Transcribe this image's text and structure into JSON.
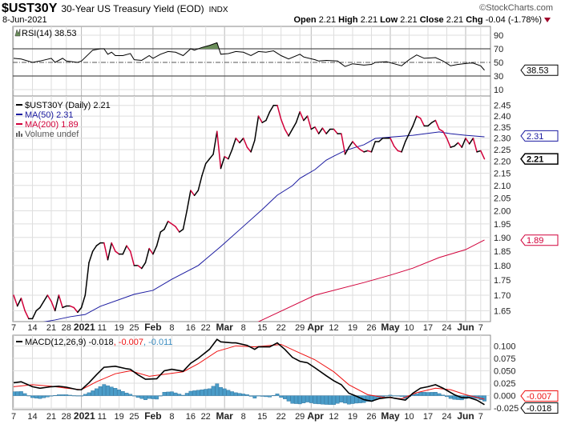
{
  "header": {
    "symbol": "$UST30Y",
    "name": "30-Year US Treasury Yield (EOD)",
    "exchange": "INDX",
    "date": "8-Jun-2021",
    "copyright": "©StockCharts.com",
    "quote": {
      "open_label": "Open",
      "open": "2.21",
      "high_label": "High",
      "high": "2.21",
      "low_label": "Low",
      "low": "2.21",
      "close_label": "Close",
      "close": "2.21",
      "chg_label": "Chg",
      "chg": "-0.04 (-1.78%)",
      "chg_icon": "down-triangle-icon"
    }
  },
  "colors": {
    "up": "#000000",
    "down": "#d1003a",
    "ma50": "#1a1aa0",
    "ma200": "#d1003a",
    "rsi_fill": "#6b8e5a",
    "macd": "#000000",
    "signal": "#ee1111",
    "hist": "#4a9cc8"
  },
  "chart_data": [
    {
      "type": "line",
      "title": "RSI(14) 38.53",
      "legend": "RSI(14) 38.53",
      "ylim": [
        0,
        100
      ],
      "yticks": [
        90,
        70,
        50,
        30,
        10
      ],
      "reference_lines": [
        70,
        50,
        30
      ],
      "last_label": "38.53",
      "series": [
        {
          "name": "RSI(14)",
          "last": 38.53,
          "points": [
            [
              0,
              56
            ],
            [
              2,
              55
            ],
            [
              5,
              50
            ],
            [
              7,
              52
            ],
            [
              10,
              56
            ],
            [
              11,
              50
            ],
            [
              13,
              56
            ],
            [
              14,
              52
            ],
            [
              17,
              50
            ],
            [
              18,
              52
            ],
            [
              21,
              68
            ],
            [
              23,
              70
            ],
            [
              24,
              70
            ],
            [
              25,
              62
            ],
            [
              26,
              65
            ],
            [
              27,
              60
            ],
            [
              29,
              60
            ],
            [
              31,
              63
            ],
            [
              32,
              54
            ],
            [
              34,
              53
            ],
            [
              36,
              60
            ],
            [
              37,
              56
            ],
            [
              39,
              62
            ],
            [
              41,
              66
            ],
            [
              43,
              65
            ],
            [
              45,
              60
            ],
            [
              47,
              70
            ],
            [
              48,
              68
            ],
            [
              50,
              72
            ],
            [
              52,
              75
            ],
            [
              54,
              79
            ],
            [
              55,
              62
            ],
            [
              57,
              63
            ],
            [
              59,
              66
            ],
            [
              61,
              65
            ],
            [
              63,
              60
            ],
            [
              65,
              66
            ],
            [
              67,
              65
            ],
            [
              69,
              67
            ],
            [
              71,
              60
            ],
            [
              73,
              55
            ],
            [
              76,
              62
            ],
            [
              77,
              58
            ],
            [
              80,
              54
            ],
            [
              81,
              52
            ],
            [
              83,
              53
            ],
            [
              86,
              52
            ],
            [
              88,
              44
            ],
            [
              90,
              48
            ],
            [
              93,
              46
            ],
            [
              95,
              47
            ],
            [
              96,
              50
            ],
            [
              99,
              51
            ],
            [
              101,
              48
            ],
            [
              103,
              45
            ],
            [
              105,
              54
            ],
            [
              107,
              61
            ],
            [
              109,
              56
            ],
            [
              112,
              57
            ],
            [
              114,
              52
            ],
            [
              116,
              45
            ],
            [
              118,
              47
            ],
            [
              121,
              49
            ],
            [
              122,
              49
            ],
            [
              124,
              45
            ],
            [
              125,
              38.53
            ]
          ]
        }
      ]
    },
    {
      "type": "line",
      "title": "$UST30Y (Daily) 2.21",
      "scale": "log",
      "ylim": [
        1.615,
        2.52
      ],
      "yticks": [
        "2.45",
        "2.40",
        "2.35",
        "2.30",
        "2.25",
        "2.20",
        "2.15",
        "2.10",
        "2.05",
        "2.00",
        "1.95",
        "1.90",
        "1.85",
        "1.80",
        "1.75",
        "1.70",
        "1.65"
      ],
      "legend": [
        {
          "label": "$UST30Y (Daily) 2.21",
          "color": "#000000"
        },
        {
          "label": "MA(50) 2.31",
          "color": "#1a1aa0"
        },
        {
          "label": "MA(200) 1.89",
          "color": "#d1003a"
        },
        {
          "label": "Volume undef",
          "color": "#555555"
        }
      ],
      "tags": {
        "ma50": "2.31",
        "close": "2.21",
        "ma200": "1.89"
      },
      "tag_values": {
        "ma50": 2.31,
        "close": 2.21,
        "ma200": 1.89
      },
      "series": [
        {
          "name": "$UST30Y",
          "values": [
            1.7,
            1.665,
            1.69,
            1.65,
            1.625,
            1.625,
            1.65,
            1.66,
            1.68,
            1.7,
            1.68,
            1.65,
            1.7,
            1.66,
            1.665,
            1.665,
            1.66,
            1.645,
            1.66,
            1.7,
            1.81,
            1.85,
            1.87,
            1.88,
            1.88,
            1.82,
            1.88,
            1.85,
            1.84,
            1.84,
            1.87,
            1.85,
            1.8,
            1.8,
            1.79,
            1.81,
            1.86,
            1.84,
            1.87,
            1.92,
            1.93,
            1.96,
            1.95,
            1.94,
            1.92,
            1.93,
            2.0,
            2.08,
            2.06,
            2.08,
            2.14,
            2.19,
            2.21,
            2.23,
            2.33,
            2.17,
            2.22,
            2.21,
            2.25,
            2.3,
            2.28,
            2.3,
            2.26,
            2.24,
            2.29,
            2.4,
            2.37,
            2.38,
            2.42,
            2.45,
            2.45,
            2.385,
            2.34,
            2.31,
            2.34,
            2.37,
            2.42,
            2.38,
            2.4,
            2.34,
            2.35,
            2.32,
            2.345,
            2.32,
            2.34,
            2.34,
            2.32,
            2.32,
            2.23,
            2.26,
            2.285,
            2.265,
            2.25,
            2.24,
            2.245,
            2.24,
            2.285,
            2.285,
            2.3,
            2.3,
            2.3,
            2.265,
            2.245,
            2.24,
            2.285,
            2.32,
            2.355,
            2.4,
            2.39,
            2.355,
            2.355,
            2.37,
            2.38,
            2.34,
            2.33,
            2.3,
            2.26,
            2.265,
            2.28,
            2.26,
            2.3,
            2.275,
            2.3,
            2.24,
            2.245,
            2.21
          ]
        },
        {
          "name": "MA(50)",
          "points": [
            [
              0,
              1.595
            ],
            [
              7,
              1.613
            ],
            [
              11,
              1.621
            ],
            [
              15,
              1.631
            ],
            [
              19,
              1.638
            ],
            [
              23,
              1.664
            ],
            [
              32,
              1.703
            ],
            [
              37,
              1.716
            ],
            [
              42,
              1.753
            ],
            [
              49,
              1.8
            ],
            [
              55,
              1.867
            ],
            [
              61,
              1.941
            ],
            [
              66,
              2.005
            ],
            [
              70,
              2.061
            ],
            [
              74,
              2.099
            ],
            [
              76,
              2.129
            ],
            [
              80,
              2.165
            ],
            [
              83,
              2.205
            ],
            [
              85,
              2.222
            ],
            [
              88,
              2.246
            ],
            [
              93,
              2.271
            ],
            [
              96,
              2.299
            ],
            [
              101,
              2.306
            ],
            [
              106,
              2.313
            ],
            [
              113,
              2.328
            ],
            [
              116,
              2.32
            ],
            [
              120,
              2.313
            ],
            [
              125,
              2.306
            ]
          ]
        },
        {
          "name": "MA(200)",
          "points": [
            [
              63,
              1.605
            ],
            [
              66,
              1.621
            ],
            [
              80,
              1.7
            ],
            [
              93,
              1.742
            ],
            [
              100,
              1.767
            ],
            [
              106,
              1.791
            ],
            [
              113,
              1.828
            ],
            [
              120,
              1.856
            ],
            [
              125,
              1.891
            ]
          ]
        }
      ]
    },
    {
      "type": "line",
      "title": "MACD(12,26,9)",
      "legend": {
        "name": "MACD(12,26,9)",
        "macd": "-0.018",
        "signal": ", -0.007",
        "hist": ", -0.011"
      },
      "ylim": [
        -0.028,
        0.122
      ],
      "yticks": [
        "0.100",
        "0.075",
        "0.050",
        "0.025",
        "0.000",
        "-0.025"
      ],
      "tags": {
        "signal": "-0.007",
        "macd": "-0.018"
      },
      "tag_values": {
        "signal": -0.007,
        "macd": -0.018
      },
      "series": [
        {
          "name": "MACD",
          "points": [
            [
              0,
              0.026
            ],
            [
              2,
              0.028
            ],
            [
              5,
              0.018
            ],
            [
              7,
              0.015
            ],
            [
              10,
              0.018
            ],
            [
              12,
              0.019
            ],
            [
              14,
              0.017
            ],
            [
              17,
              0.012
            ],
            [
              18,
              0.012
            ],
            [
              20,
              0.026
            ],
            [
              22,
              0.042
            ],
            [
              24,
              0.057
            ],
            [
              27,
              0.059
            ],
            [
              30,
              0.054
            ],
            [
              31,
              0.053
            ],
            [
              33,
              0.042
            ],
            [
              35,
              0.033
            ],
            [
              38,
              0.034
            ],
            [
              40,
              0.05
            ],
            [
              42,
              0.053
            ],
            [
              45,
              0.049
            ],
            [
              47,
              0.065
            ],
            [
              49,
              0.075
            ],
            [
              52,
              0.093
            ],
            [
              54,
              0.113
            ],
            [
              55,
              0.108
            ],
            [
              58,
              0.106
            ],
            [
              59,
              0.106
            ],
            [
              62,
              0.101
            ],
            [
              64,
              0.093
            ],
            [
              65,
              0.098
            ],
            [
              68,
              0.098
            ],
            [
              70,
              0.106
            ],
            [
              72,
              0.093
            ],
            [
              74,
              0.077
            ],
            [
              76,
              0.069
            ],
            [
              78,
              0.066
            ],
            [
              80,
              0.056
            ],
            [
              83,
              0.04
            ],
            [
              85,
              0.03
            ],
            [
              87,
              0.022
            ],
            [
              89,
              0.005
            ],
            [
              91,
              -0.001
            ],
            [
              93,
              -0.008
            ],
            [
              95,
              -0.011
            ],
            [
              97,
              -0.006
            ],
            [
              100,
              -0.003
            ],
            [
              101,
              -0.005
            ],
            [
              104,
              -0.009
            ],
            [
              106,
              0.005
            ],
            [
              108,
              0.015
            ],
            [
              110,
              0.018
            ],
            [
              112,
              0.022
            ],
            [
              114,
              0.015
            ],
            [
              117,
              0.002
            ],
            [
              119,
              -0.004
            ],
            [
              121,
              -0.004
            ],
            [
              123,
              -0.009
            ],
            [
              125,
              -0.018
            ]
          ]
        },
        {
          "name": "Signal",
          "points": [
            [
              0,
              0.018
            ],
            [
              5,
              0.022
            ],
            [
              10,
              0.019
            ],
            [
              14,
              0.015
            ],
            [
              18,
              0.012
            ],
            [
              22,
              0.028
            ],
            [
              27,
              0.044
            ],
            [
              31,
              0.05
            ],
            [
              36,
              0.039
            ],
            [
              40,
              0.043
            ],
            [
              45,
              0.048
            ],
            [
              49,
              0.064
            ],
            [
              54,
              0.089
            ],
            [
              59,
              0.1
            ],
            [
              64,
              0.098
            ],
            [
              71,
              0.103
            ],
            [
              75,
              0.089
            ],
            [
              80,
              0.072
            ],
            [
              85,
              0.048
            ],
            [
              89,
              0.022
            ],
            [
              94,
              0.002
            ],
            [
              98,
              -0.003
            ],
            [
              103,
              -0.006
            ],
            [
              107,
              0.006
            ],
            [
              112,
              0.015
            ],
            [
              116,
              0.012
            ],
            [
              120,
              0.002
            ],
            [
              125,
              -0.007
            ]
          ]
        },
        {
          "name": "Histogram",
          "derived": "MACD - Signal",
          "last": -0.011
        }
      ]
    }
  ],
  "x_axis": {
    "unit": "trading-day index (0 = 7-Dec-2020, 125 = 8-Jun-2021)",
    "ticks": [
      [
        0,
        "7",
        0
      ],
      [
        5,
        "14",
        0
      ],
      [
        10,
        "21",
        0
      ],
      [
        14,
        "28",
        0
      ],
      [
        18,
        "2021",
        1
      ],
      [
        23,
        "11",
        0
      ],
      [
        28,
        "19",
        0
      ],
      [
        32,
        "25",
        0
      ],
      [
        37,
        "Feb",
        1
      ],
      [
        42,
        "8",
        0
      ],
      [
        47,
        "16",
        0
      ],
      [
        51,
        "22",
        0
      ],
      [
        56,
        "Mar",
        1
      ],
      [
        61,
        "8",
        0
      ],
      [
        66,
        "15",
        0
      ],
      [
        71,
        "22",
        0
      ],
      [
        76,
        "29",
        0
      ],
      [
        79,
        "Apr",
        1
      ],
      [
        85,
        "12",
        0
      ],
      [
        90,
        "19",
        0
      ],
      [
        95,
        "26",
        0
      ],
      [
        100,
        "May",
        1
      ],
      [
        105,
        "10",
        0
      ],
      [
        110,
        "17",
        0
      ],
      [
        115,
        "24",
        0
      ],
      [
        120,
        "Jun",
        1
      ],
      [
        124,
        "7",
        0
      ]
    ]
  }
}
